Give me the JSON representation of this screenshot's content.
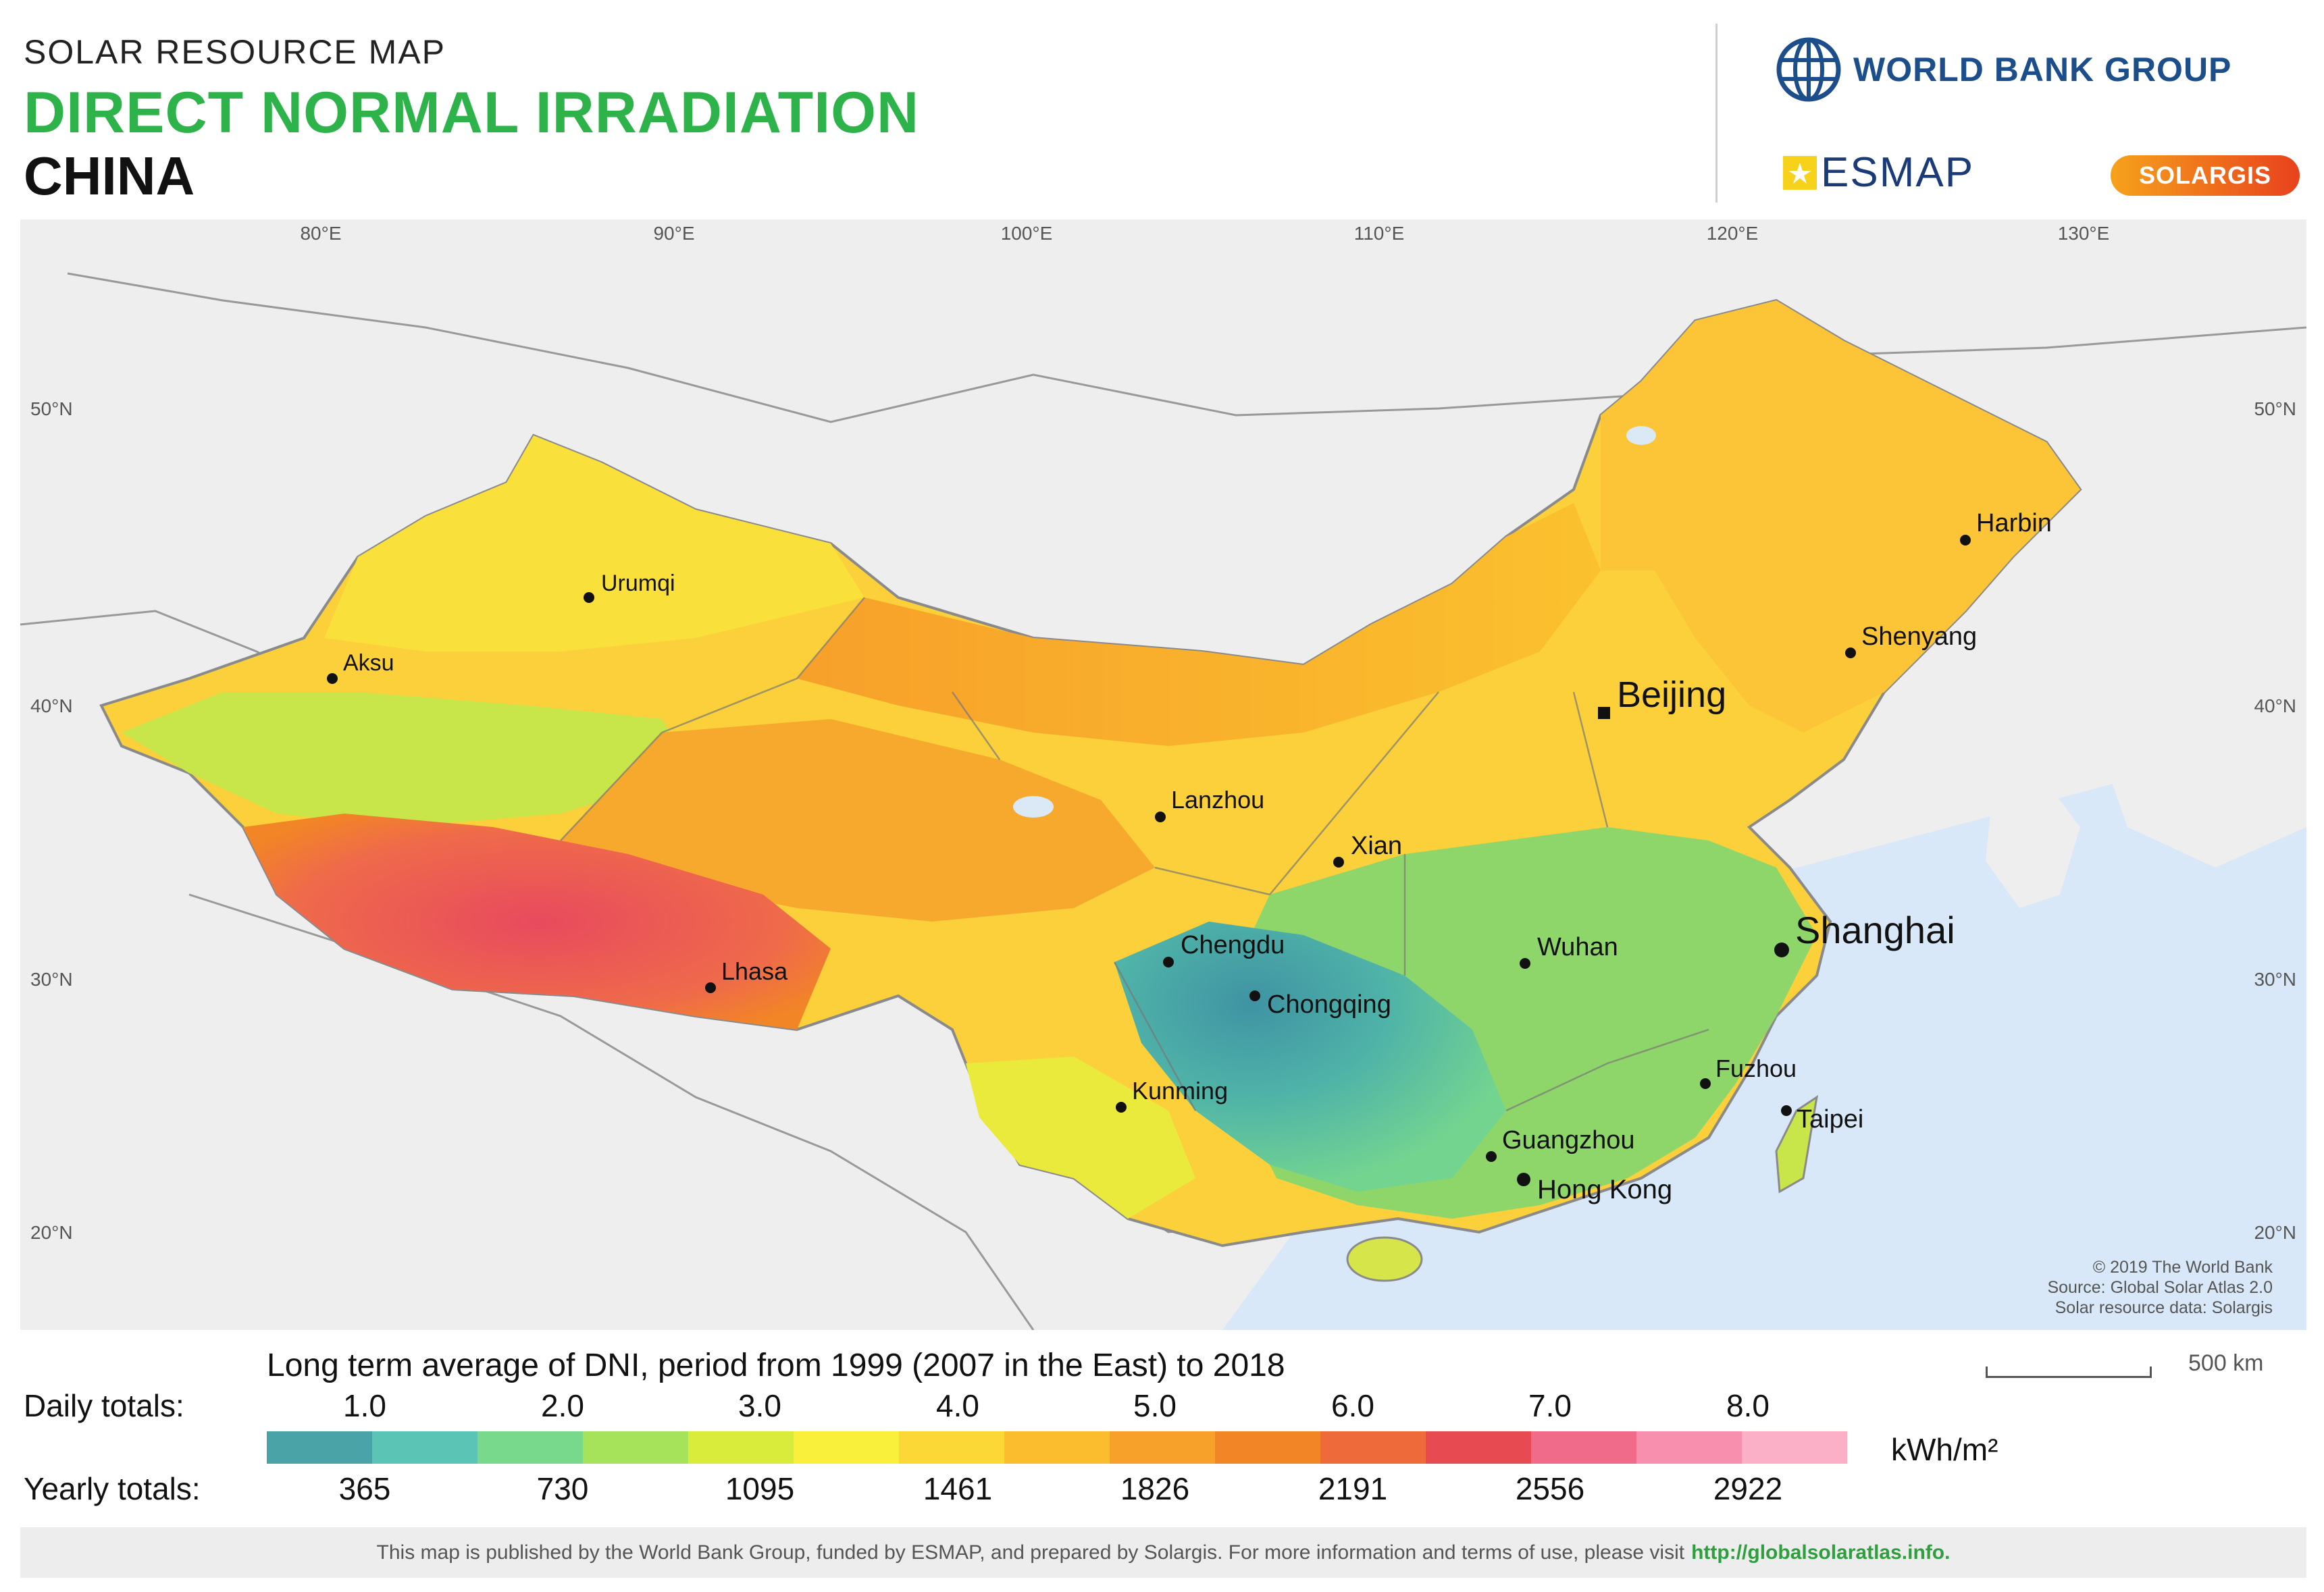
{
  "header": {
    "kicker": "SOLAR RESOURCE MAP",
    "title": "DIRECT NORMAL IRRADIATION",
    "country": "CHINA"
  },
  "logos": {
    "world_bank": "WORLD BANK GROUP",
    "esmap": "ESMAP",
    "solargis": "SOLARGIS"
  },
  "map": {
    "longitudes": [
      "80°E",
      "90°E",
      "100°E",
      "110°E",
      "120°E",
      "130°E"
    ],
    "latitudes": [
      "50°N",
      "40°N",
      "30°N",
      "20°N"
    ],
    "cities": [
      {
        "name": "Urumqi"
      },
      {
        "name": "Aksu"
      },
      {
        "name": "Lanzhou"
      },
      {
        "name": "Xian"
      },
      {
        "name": "Beijing"
      },
      {
        "name": "Shenyang"
      },
      {
        "name": "Harbin"
      },
      {
        "name": "Lhasa"
      },
      {
        "name": "Chengdu"
      },
      {
        "name": "Chongqing"
      },
      {
        "name": "Wuhan"
      },
      {
        "name": "Shanghai"
      },
      {
        "name": "Fuzhou"
      },
      {
        "name": "Taipei"
      },
      {
        "name": "Kunming"
      },
      {
        "name": "Guangzhou"
      },
      {
        "name": "Hong Kong"
      }
    ],
    "credits": [
      "© 2019 The World Bank",
      "Source: Global Solar Atlas 2.0",
      "Solar resource data: Solargis"
    ]
  },
  "legend": {
    "title": "Long term average of DNI, period from 1999 (2007 in the East) to 2018",
    "daily_label": "Daily totals:",
    "yearly_label": "Yearly totals:",
    "daily": [
      "1.0",
      "2.0",
      "3.0",
      "4.0",
      "5.0",
      "6.0",
      "7.0",
      "8.0"
    ],
    "yearly": [
      "365",
      "730",
      "1095",
      "1461",
      "1826",
      "2191",
      "2556",
      "2922"
    ],
    "unit": "kWh/m²",
    "colors": [
      "#4aa3a6",
      "#5cc4b4",
      "#78d98c",
      "#a6e35a",
      "#d9ec3c",
      "#f8f03a",
      "#fcd836",
      "#fbbd2e",
      "#f7a02a",
      "#f28526",
      "#ef6a3a",
      "#e84a52",
      "#f06a8a",
      "#f88fae",
      "#fbb0c8"
    ]
  },
  "scale": {
    "label": "500 km"
  },
  "footer": {
    "text": "This map is published by the World Bank Group, funded by ESMAP, and prepared by Solargis. For more information and terms of use, please visit",
    "link": "http://globalsolaratlas.info."
  }
}
